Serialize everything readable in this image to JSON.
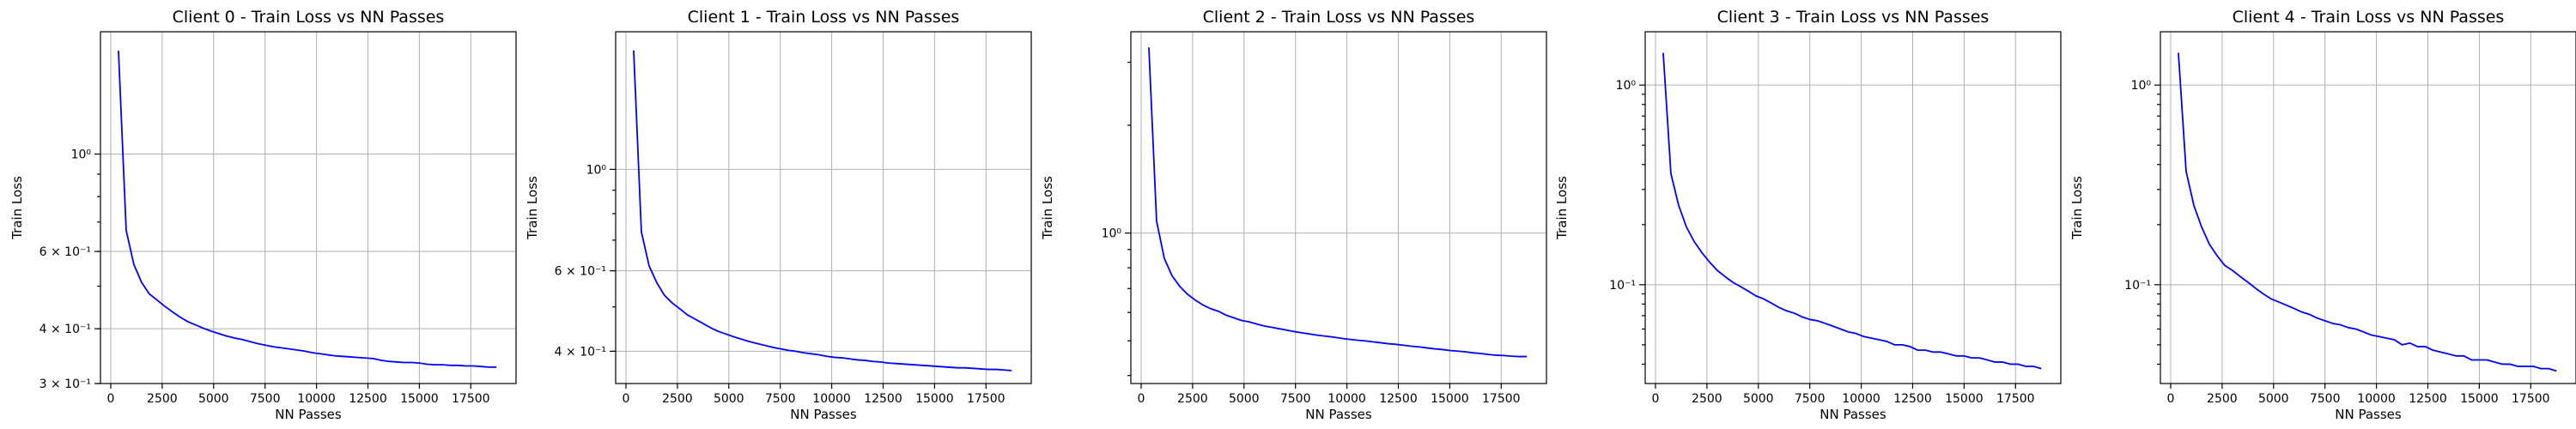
{
  "chart_data": [
    {
      "type": "line",
      "title": "Client 0 - Train Loss vs NN Passes",
      "xlabel": "NN Passes",
      "ylabel": "Train Loss",
      "xscale": "linear",
      "yscale": "log",
      "xlim": [
        -500,
        19700
      ],
      "ylim": [
        0.3,
        1.9
      ],
      "xticks": [
        0,
        2500,
        5000,
        7500,
        10000,
        12500,
        15000,
        17500
      ],
      "xtick_labels": [
        "0",
        "2500",
        "5000",
        "7500",
        "10000",
        "12500",
        "15000",
        "17500"
      ],
      "yticks": [
        0.3,
        0.4,
        0.6,
        1.0
      ],
      "ytick_labels": [
        "3 × 10⁻¹",
        "4 × 10⁻¹",
        "6 × 10⁻¹",
        "10⁰"
      ],
      "grid": true,
      "line_color": "#0000ff",
      "series": [
        {
          "x": [
            375,
            750,
            1125,
            1500,
            1875,
            2250,
            2625,
            3000,
            3375,
            3750,
            4125,
            4500,
            4875,
            5250,
            5625,
            6000,
            6375,
            6750,
            7125,
            7500,
            7875,
            8250,
            8625,
            9000,
            9375,
            9750,
            10125,
            10500,
            10875,
            11250,
            11625,
            12000,
            12375,
            12750,
            13125,
            13500,
            13875,
            14250,
            14625,
            15000,
            15375,
            15750,
            16125,
            16500,
            16875,
            17250,
            17625,
            18000,
            18375,
            18750
          ],
          "y": [
            1.72,
            0.67,
            0.56,
            0.51,
            0.48,
            0.465,
            0.45,
            0.437,
            0.425,
            0.415,
            0.408,
            0.401,
            0.395,
            0.39,
            0.385,
            0.381,
            0.378,
            0.374,
            0.37,
            0.367,
            0.364,
            0.362,
            0.36,
            0.358,
            0.356,
            0.353,
            0.351,
            0.349,
            0.347,
            0.346,
            0.345,
            0.344,
            0.343,
            0.342,
            0.339,
            0.337,
            0.336,
            0.335,
            0.335,
            0.334,
            0.332,
            0.331,
            0.331,
            0.33,
            0.33,
            0.329,
            0.329,
            0.328,
            0.327,
            0.327
          ]
        }
      ]
    },
    {
      "type": "line",
      "title": "Client 1 - Train Loss vs NN Passes",
      "xlabel": "NN Passes",
      "ylabel": "Train Loss",
      "xscale": "linear",
      "yscale": "log",
      "xlim": [
        -500,
        19700
      ],
      "ylim": [
        0.34,
        2.0
      ],
      "xticks": [
        0,
        2500,
        5000,
        7500,
        10000,
        12500,
        15000,
        17500
      ],
      "xtick_labels": [
        "0",
        "2500",
        "5000",
        "7500",
        "10000",
        "12500",
        "15000",
        "17500"
      ],
      "yticks": [
        0.4,
        0.6,
        1.0
      ],
      "ytick_labels": [
        "4 × 10⁻¹",
        "6 × 10⁻¹",
        "10⁰"
      ],
      "grid": true,
      "line_color": "#0000ff",
      "series": [
        {
          "x": [
            375,
            750,
            1125,
            1500,
            1875,
            2250,
            2625,
            3000,
            3375,
            3750,
            4125,
            4500,
            4875,
            5250,
            5625,
            6000,
            6375,
            6750,
            7125,
            7500,
            7875,
            8250,
            8625,
            9000,
            9375,
            9750,
            10125,
            10500,
            10875,
            11250,
            11625,
            12000,
            12375,
            12750,
            13125,
            13500,
            13875,
            14250,
            14625,
            15000,
            15375,
            15750,
            16125,
            16500,
            16875,
            17250,
            17625,
            18000,
            18375,
            18750
          ],
          "y": [
            1.82,
            0.73,
            0.615,
            0.565,
            0.53,
            0.51,
            0.495,
            0.48,
            0.47,
            0.46,
            0.45,
            0.442,
            0.436,
            0.43,
            0.425,
            0.42,
            0.416,
            0.412,
            0.408,
            0.405,
            0.402,
            0.4,
            0.397,
            0.395,
            0.393,
            0.39,
            0.388,
            0.387,
            0.385,
            0.383,
            0.382,
            0.38,
            0.379,
            0.377,
            0.376,
            0.375,
            0.374,
            0.373,
            0.372,
            0.371,
            0.37,
            0.369,
            0.368,
            0.368,
            0.367,
            0.366,
            0.365,
            0.365,
            0.364,
            0.363
          ]
        }
      ]
    },
    {
      "type": "line",
      "title": "Client 2 - Train Loss vs NN Passes",
      "xlabel": "NN Passes",
      "ylabel": "Train Loss",
      "xscale": "linear",
      "yscale": "log",
      "xlim": [
        -500,
        19700
      ],
      "ylim": [
        0.38,
        3.65
      ],
      "xticks": [
        0,
        2500,
        5000,
        7500,
        10000,
        12500,
        15000,
        17500
      ],
      "xtick_labels": [
        "0",
        "2500",
        "5000",
        "7500",
        "10000",
        "12500",
        "15000",
        "17500"
      ],
      "yticks": [
        1.0
      ],
      "ytick_labels": [
        "10⁰"
      ],
      "grid": true,
      "line_color": "#0000ff",
      "series": [
        {
          "x": [
            375,
            750,
            1125,
            1500,
            1875,
            2250,
            2625,
            3000,
            3375,
            3750,
            4125,
            4500,
            4875,
            5250,
            5625,
            6000,
            6375,
            6750,
            7125,
            7500,
            7875,
            8250,
            8625,
            9000,
            9375,
            9750,
            10125,
            10500,
            10875,
            11250,
            11625,
            12000,
            12375,
            12750,
            13125,
            13500,
            13875,
            14250,
            14625,
            15000,
            15375,
            15750,
            16125,
            16500,
            16875,
            17250,
            17625,
            18000,
            18375,
            18750
          ],
          "y": [
            3.3,
            1.08,
            0.85,
            0.76,
            0.71,
            0.675,
            0.65,
            0.63,
            0.615,
            0.605,
            0.59,
            0.58,
            0.57,
            0.565,
            0.557,
            0.55,
            0.545,
            0.54,
            0.535,
            0.53,
            0.526,
            0.522,
            0.518,
            0.515,
            0.512,
            0.508,
            0.505,
            0.502,
            0.5,
            0.497,
            0.494,
            0.491,
            0.489,
            0.486,
            0.483,
            0.481,
            0.478,
            0.475,
            0.473,
            0.47,
            0.468,
            0.466,
            0.463,
            0.461,
            0.458,
            0.456,
            0.455,
            0.453,
            0.452,
            0.452
          ]
        }
      ]
    },
    {
      "type": "line",
      "title": "Client 3 - Train Loss vs NN Passes",
      "xlabel": "NN Passes",
      "ylabel": "Train Loss",
      "xscale": "linear",
      "yscale": "log",
      "xlim": [
        -500,
        19700
      ],
      "ylim": [
        0.032,
        1.85
      ],
      "xticks": [
        0,
        2500,
        5000,
        7500,
        10000,
        12500,
        15000,
        17500
      ],
      "xtick_labels": [
        "0",
        "2500",
        "5000",
        "7500",
        "10000",
        "12500",
        "15000",
        "17500"
      ],
      "yticks": [
        0.1,
        1.0
      ],
      "ytick_labels": [
        "10⁻¹",
        "10⁰"
      ],
      "grid": true,
      "line_color": "#0000ff",
      "series": [
        {
          "x": [
            375,
            750,
            1125,
            1500,
            1875,
            2250,
            2625,
            3000,
            3375,
            3750,
            4125,
            4500,
            4875,
            5250,
            5625,
            6000,
            6375,
            6750,
            7125,
            7500,
            7875,
            8250,
            8625,
            9000,
            9375,
            9750,
            10125,
            10500,
            10875,
            11250,
            11625,
            12000,
            12375,
            12750,
            13125,
            13500,
            13875,
            14250,
            14625,
            15000,
            15375,
            15750,
            16125,
            16500,
            16875,
            17250,
            17625,
            18000,
            18375,
            18750
          ],
          "y": [
            1.45,
            0.36,
            0.25,
            0.195,
            0.165,
            0.145,
            0.13,
            0.118,
            0.11,
            0.103,
            0.098,
            0.093,
            0.088,
            0.085,
            0.081,
            0.077,
            0.074,
            0.072,
            0.069,
            0.067,
            0.066,
            0.064,
            0.062,
            0.06,
            0.058,
            0.057,
            0.055,
            0.054,
            0.053,
            0.052,
            0.05,
            0.05,
            0.049,
            0.047,
            0.047,
            0.046,
            0.046,
            0.045,
            0.044,
            0.044,
            0.043,
            0.043,
            0.042,
            0.041,
            0.041,
            0.04,
            0.04,
            0.039,
            0.039,
            0.038
          ]
        }
      ]
    },
    {
      "type": "line",
      "title": "Client 4 - Train Loss vs NN Passes",
      "xlabel": "NN Passes",
      "ylabel": "Train Loss",
      "xscale": "linear",
      "yscale": "log",
      "xlim": [
        -500,
        19700
      ],
      "ylim": [
        0.032,
        1.85
      ],
      "xticks": [
        0,
        2500,
        5000,
        7500,
        10000,
        12500,
        15000,
        17500
      ],
      "xtick_labels": [
        "0",
        "2500",
        "5000",
        "7500",
        "10000",
        "12500",
        "15000",
        "17500"
      ],
      "yticks": [
        0.1,
        1.0
      ],
      "ytick_labels": [
        "10⁻¹",
        "10⁰"
      ],
      "grid": true,
      "line_color": "#0000ff",
      "series": [
        {
          "x": [
            375,
            750,
            1125,
            1500,
            1875,
            2250,
            2625,
            3000,
            3375,
            3750,
            4125,
            4500,
            4875,
            5250,
            5625,
            6000,
            6375,
            6750,
            7125,
            7500,
            7875,
            8250,
            8625,
            9000,
            9375,
            9750,
            10125,
            10500,
            10875,
            11250,
            11625,
            12000,
            12375,
            12750,
            13125,
            13500,
            13875,
            14250,
            14625,
            15000,
            15375,
            15750,
            16125,
            16500,
            16875,
            17250,
            17625,
            18000,
            18375,
            18750
          ],
          "y": [
            1.45,
            0.37,
            0.25,
            0.195,
            0.16,
            0.14,
            0.125,
            0.118,
            0.11,
            0.103,
            0.096,
            0.09,
            0.085,
            0.082,
            0.079,
            0.076,
            0.073,
            0.071,
            0.068,
            0.066,
            0.064,
            0.063,
            0.061,
            0.06,
            0.058,
            0.056,
            0.055,
            0.054,
            0.053,
            0.05,
            0.051,
            0.049,
            0.049,
            0.047,
            0.046,
            0.045,
            0.044,
            0.044,
            0.042,
            0.042,
            0.042,
            0.041,
            0.04,
            0.04,
            0.039,
            0.039,
            0.039,
            0.038,
            0.038,
            0.037
          ]
        }
      ]
    }
  ]
}
